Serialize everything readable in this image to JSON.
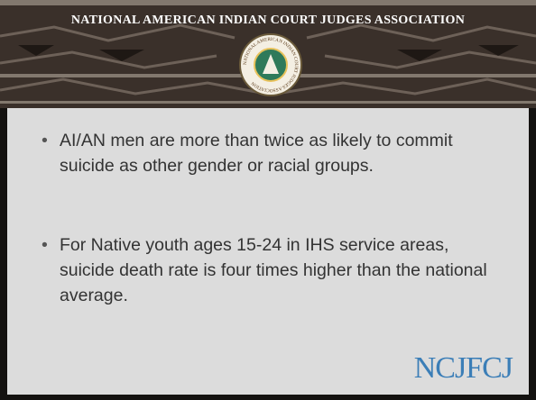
{
  "header": {
    "title": "NATIONAL AMERICAN INDIAN COURT JUDGES ASSOCIATION",
    "logo_text": "NATIONAL AMERICAN INDIAN COURT JUDGES ASSOCIATION"
  },
  "bullets": [
    "AI/AN men are more than twice as likely to commit suicide as other gender or racial groups.",
    "For Native youth ages 15-24 in IHS service areas, suicide death rate is four times higher than the national average."
  ],
  "footer_logo": "NCJFCJ"
}
